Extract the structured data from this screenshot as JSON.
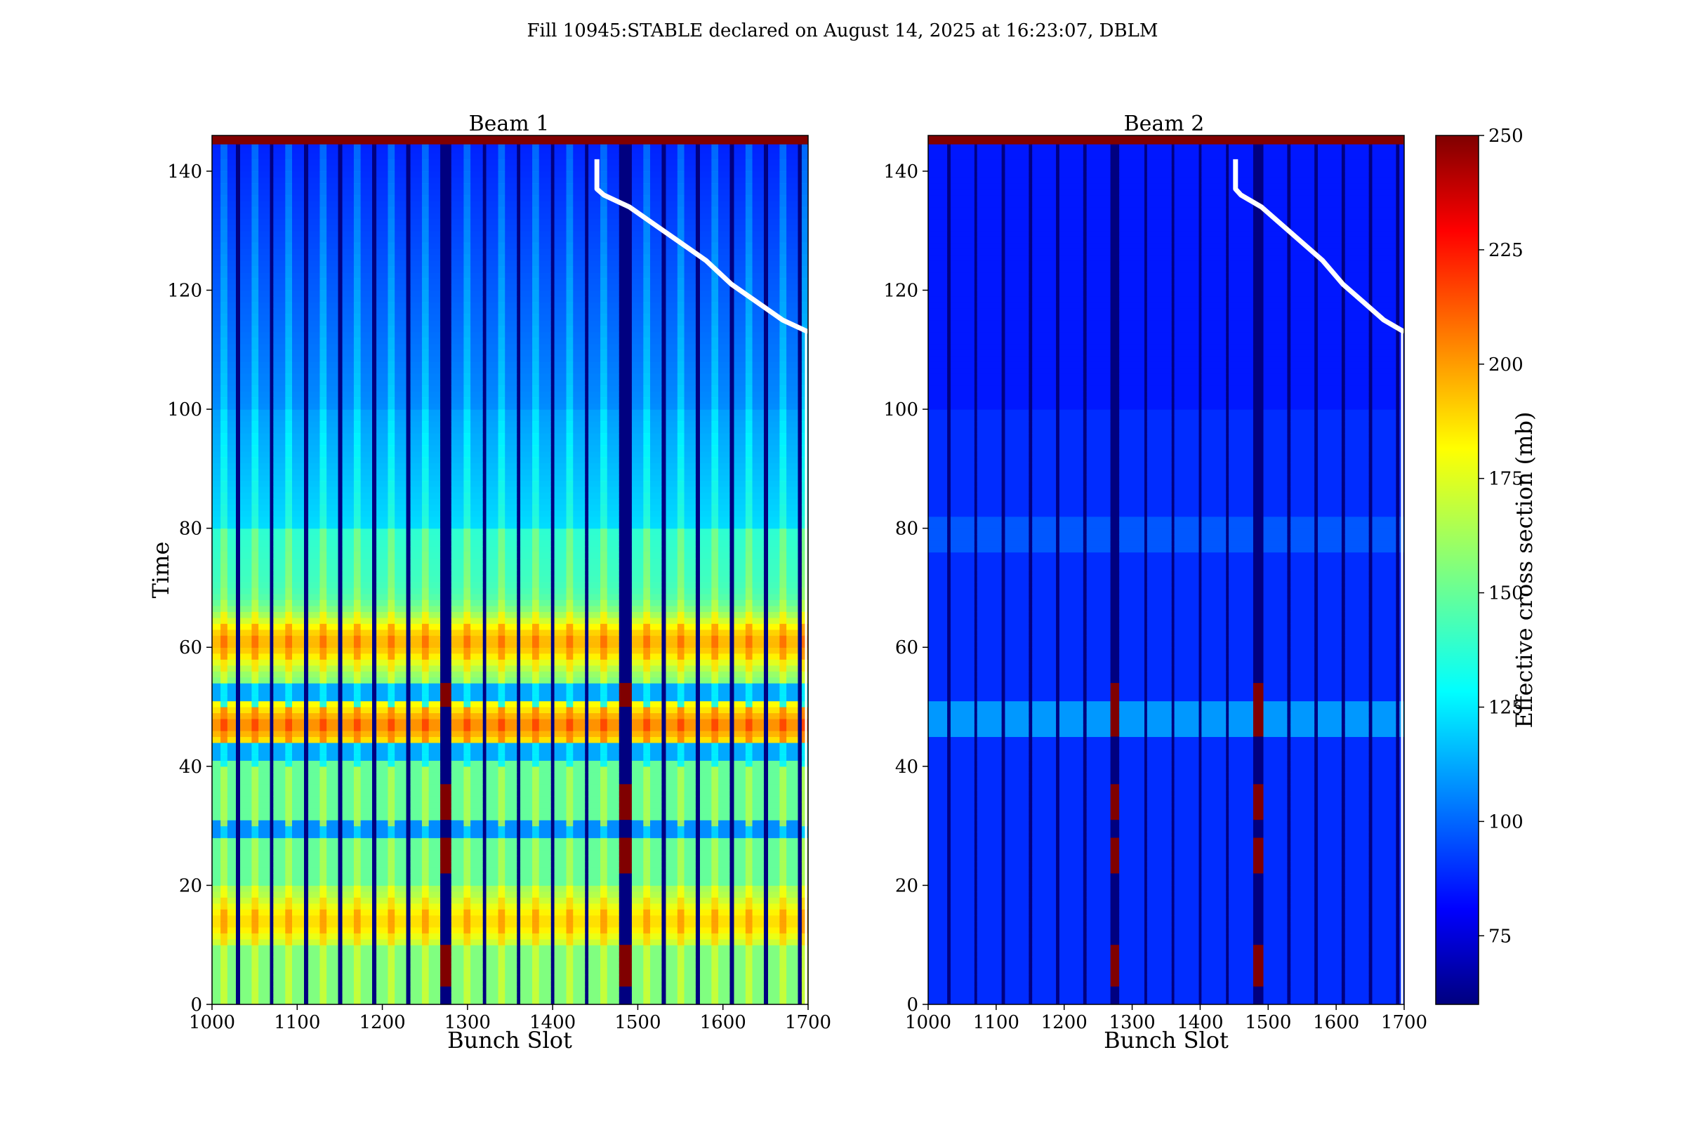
{
  "figure_title": "Fill 10945:STABLE declared on August 14, 2025 at 16:23:07, DBLM",
  "colorbar": {
    "label": "Effective cross section (mb)",
    "ticks": [
      75,
      100,
      125,
      150,
      175,
      200,
      225,
      250
    ],
    "range": [
      60,
      250
    ],
    "colormap": "jet"
  },
  "chart_data": [
    {
      "type": "heatmap",
      "title": "Beam 1",
      "xlabel": "Bunch Slot",
      "ylabel": "Time",
      "xlim": [
        1000,
        1700
      ],
      "ylim": [
        0,
        146
      ],
      "xticks": [
        1000,
        1100,
        1200,
        1300,
        1400,
        1500,
        1600,
        1700
      ],
      "yticks": [
        0,
        20,
        40,
        60,
        80,
        100,
        120,
        140
      ],
      "filled_trains": [
        [
          1000,
          1028
        ],
        [
          1033,
          1068
        ],
        [
          1072,
          1108
        ],
        [
          1113,
          1148
        ],
        [
          1153,
          1188
        ],
        [
          1193,
          1228
        ],
        [
          1233,
          1268
        ],
        [
          1281,
          1318
        ],
        [
          1322,
          1358
        ],
        [
          1362,
          1398
        ],
        [
          1402,
          1438
        ],
        [
          1442,
          1478
        ],
        [
          1493,
          1528
        ],
        [
          1533,
          1568
        ],
        [
          1573,
          1608
        ],
        [
          1613,
          1648
        ],
        [
          1653,
          1688
        ],
        [
          1693,
          1700
        ]
      ],
      "empty_cells_cross_section": 60,
      "typical_cross_section": {
        "early": 150,
        "peak_t14": 185,
        "peak_t46": 200,
        "peak_t60": 195,
        "late": 100
      },
      "saturated_blocks_in_gaps_time_ranges": [
        [
          3,
          10
        ],
        [
          22,
          28
        ],
        [
          31,
          37
        ],
        [
          50,
          54
        ]
      ],
      "curve": {
        "x": [
          1452,
          1452,
          1460,
          1490,
          1520,
          1550,
          1580,
          1610,
          1640,
          1670,
          1700
        ],
        "t": [
          142,
          137,
          136,
          134,
          131,
          128,
          125,
          121,
          118,
          115,
          113
        ]
      }
    },
    {
      "type": "heatmap",
      "title": "Beam 2",
      "xlabel": "Bunch Slot",
      "ylabel": "",
      "xlim": [
        1000,
        1700
      ],
      "ylim": [
        0,
        146
      ],
      "xticks": [
        1000,
        1100,
        1200,
        1300,
        1400,
        1500,
        1600,
        1700
      ],
      "yticks": [
        0,
        20,
        40,
        60,
        80,
        100,
        120,
        140
      ],
      "filled_trains": [
        [
          1000,
          1028
        ],
        [
          1033,
          1068
        ],
        [
          1072,
          1108
        ],
        [
          1113,
          1148
        ],
        [
          1153,
          1188
        ],
        [
          1193,
          1228
        ],
        [
          1233,
          1268
        ],
        [
          1281,
          1318
        ],
        [
          1322,
          1358
        ],
        [
          1362,
          1398
        ],
        [
          1402,
          1438
        ],
        [
          1442,
          1478
        ],
        [
          1493,
          1528
        ],
        [
          1533,
          1568
        ],
        [
          1573,
          1608
        ],
        [
          1613,
          1648
        ],
        [
          1653,
          1688
        ],
        [
          1693,
          1700
        ]
      ],
      "empty_cells_cross_section": 60,
      "typical_cross_section": {
        "early": 92,
        "peak_t46": 115,
        "late": 88
      },
      "saturated_blocks_in_gaps_time_ranges": [
        [
          3,
          10
        ],
        [
          22,
          28
        ],
        [
          31,
          37
        ],
        [
          45,
          54
        ]
      ],
      "curve": {
        "x": [
          1452,
          1452,
          1460,
          1490,
          1520,
          1550,
          1580,
          1610,
          1640,
          1670,
          1700
        ],
        "t": [
          142,
          137,
          136,
          134,
          131,
          128,
          125,
          121,
          118,
          115,
          113
        ]
      }
    }
  ]
}
